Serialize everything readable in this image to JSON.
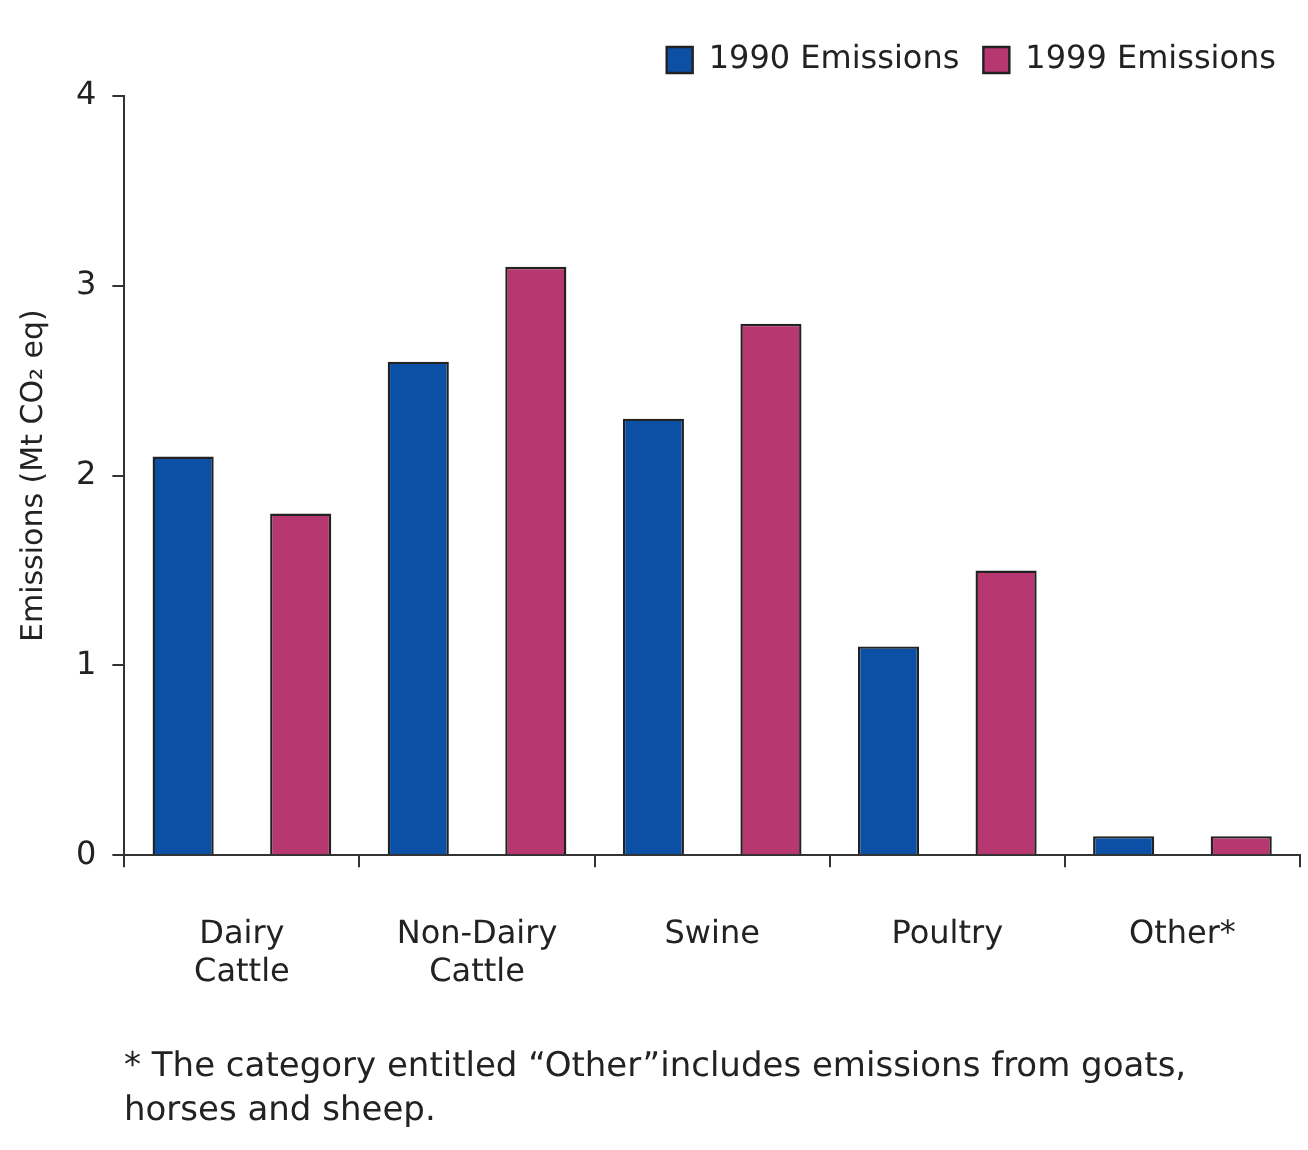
{
  "chart_data": {
    "type": "bar",
    "ylabel": "Emissions (Mt CO₂ eq)",
    "categories": [
      "Dairy Cattle",
      "Non-Dairy Cattle",
      "Swine",
      "Poultry",
      "Other*"
    ],
    "series": [
      {
        "name": "1990 Emissions",
        "color": "#0b50a4",
        "values": [
          2.1,
          2.6,
          2.3,
          1.1,
          0.1
        ]
      },
      {
        "name": "1999 Emissions",
        "color": "#b73871",
        "values": [
          1.8,
          3.1,
          2.8,
          1.5,
          0.1
        ]
      }
    ],
    "ylim": [
      0,
      4
    ],
    "yticks": [
      0,
      1,
      2,
      3,
      4
    ],
    "grid": false,
    "legend": "top right",
    "annotations": [
      "* The category entitled “Other”includes emissions from goats, horses and sheep."
    ]
  }
}
